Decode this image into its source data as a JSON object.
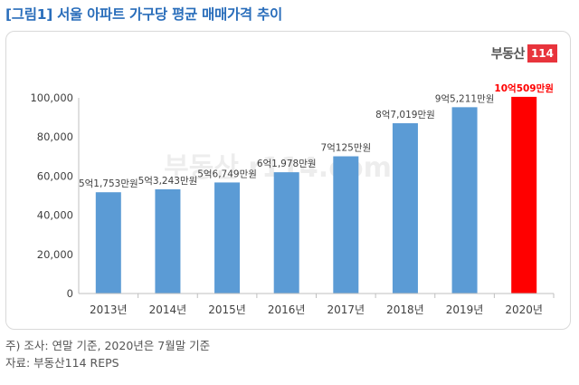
{
  "figure": {
    "title": "[그림1] 서울 아파트 가구당 평균 매매가격 추이",
    "note": "주) 조사: 연말 기준, 2020년은 7월말 기준",
    "source": "자료: 부동산114 REPS"
  },
  "brand": {
    "name": "부동산",
    "number": "114",
    "color": "#e8343c"
  },
  "watermark": "부동산 r114.com",
  "chart_data": {
    "type": "bar",
    "categories": [
      "2013년",
      "2014년",
      "2015년",
      "2016년",
      "2017년",
      "2018년",
      "2019년",
      "2020년"
    ],
    "values": [
      51753,
      53243,
      56749,
      61978,
      70125,
      87019,
      95211,
      100509
    ],
    "data_labels": [
      "5억1,753만원",
      "5억3,243만원",
      "5억6,749만원",
      "6억1,978만원",
      "7억125만원",
      "8억7,019만원",
      "9억5,211만원",
      "10억509만원"
    ],
    "highlight_index": 7,
    "colors": {
      "bar": "#5b9bd5",
      "highlight": "#ff0000",
      "highlight_label": "#ff0000"
    },
    "ylim": [
      0,
      100000
    ],
    "yticks": [
      0,
      20000,
      40000,
      60000,
      80000,
      100000
    ],
    "ytick_labels": [
      "0",
      "20,000",
      "40,000",
      "60,000",
      "80,000",
      "100,000"
    ],
    "grid": false,
    "legend": "none"
  }
}
